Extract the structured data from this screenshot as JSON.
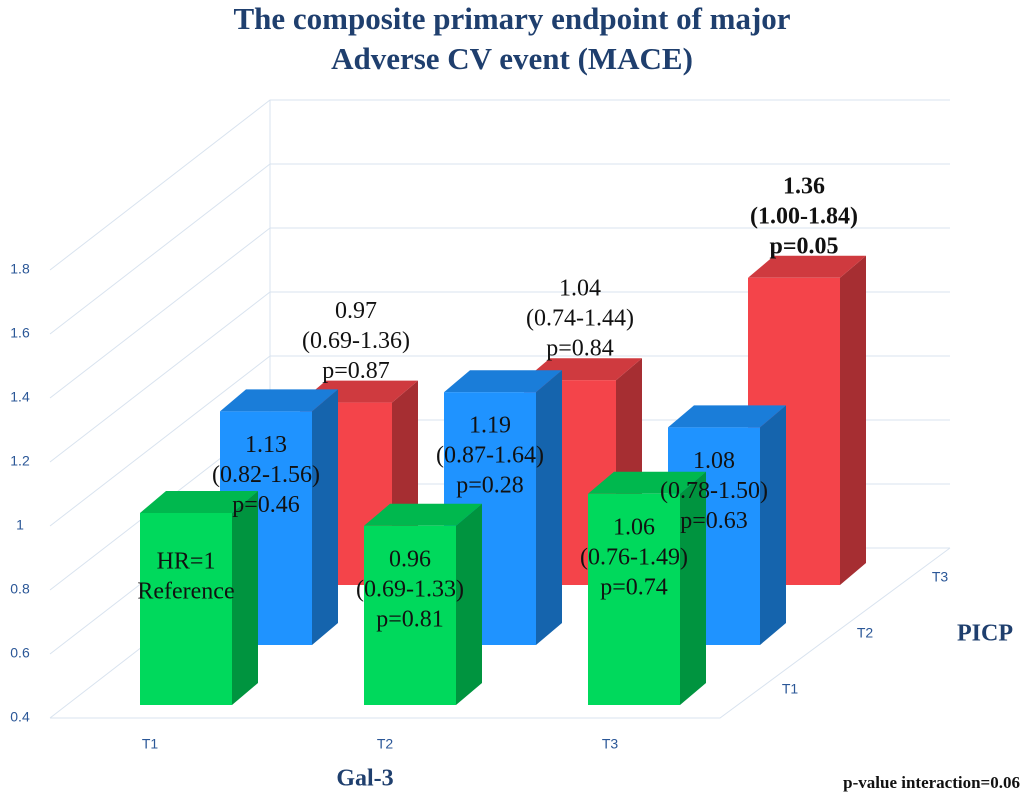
{
  "chart_data": {
    "type": "bar3d",
    "title": [
      "The composite primary endpoint of major",
      "Adverse CV event (MACE)"
    ],
    "x_label": "Gal-3",
    "depth_label": "PICP",
    "annotation": "p-value interaction=0.06",
    "categories": [
      "T1",
      "T2",
      "T3"
    ],
    "ylim": [
      0.4,
      1.8
    ],
    "yticks": [
      0.4,
      0.6,
      0.8,
      1,
      1.2,
      1.4,
      1.6,
      1.8
    ],
    "grid": true,
    "series": [
      {
        "name": "T1",
        "color": "#00d95c",
        "values": [
          1,
          0.96,
          1.06
        ],
        "value_labels": [
          [
            "HR=1",
            "Reference"
          ],
          [
            "0.96",
            "(0.69-1.33)",
            "p=0.81"
          ],
          [
            "1.06",
            "(0.76-1.49)",
            "p=0.74"
          ]
        ]
      },
      {
        "name": "T2",
        "color": "#1f93ff",
        "values": [
          1.13,
          1.19,
          1.08
        ],
        "value_labels": [
          [
            "1.13",
            "(0.82-1.56)",
            "p=0.46"
          ],
          [
            "1.19",
            "(0.87-1.64)",
            "p=0.28"
          ],
          [
            "1.08",
            "(0.78-1.50)",
            "p=0.63"
          ]
        ]
      },
      {
        "name": "T3",
        "color": "#f4444a",
        "values": [
          0.97,
          1.04,
          1.36
        ],
        "value_labels": [
          [
            "0.97",
            "(0.69-1.36)",
            "p=0.87"
          ],
          [
            "1.04",
            "(0.74-1.44)",
            "p=0.84"
          ],
          [
            "1.36",
            "(1.00-1.84)",
            "p=0.05"
          ]
        ]
      }
    ]
  }
}
